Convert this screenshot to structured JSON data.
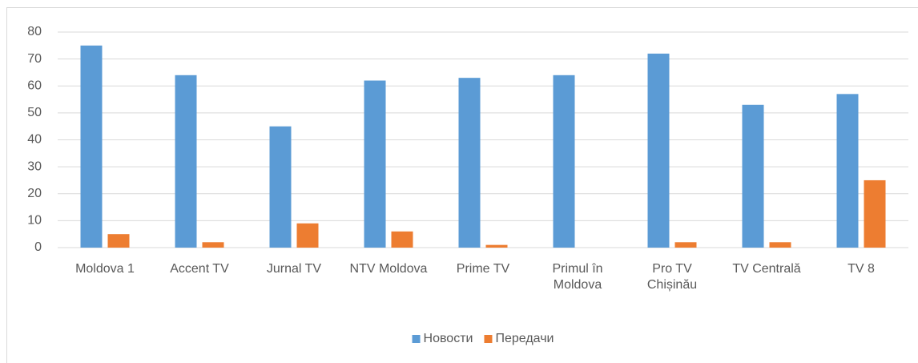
{
  "chart_data": {
    "type": "bar",
    "categories": [
      "Moldova 1",
      "Accent TV",
      "Jurnal TV",
      "NTV Moldova",
      "Prime TV",
      "Primul în Moldova",
      "Pro TV Chișinău",
      "TV Centrală",
      "TV 8"
    ],
    "series": [
      {
        "name": "Новости",
        "color": "#5b9bd5",
        "values": [
          75,
          64,
          45,
          62,
          63,
          64,
          72,
          53,
          57
        ]
      },
      {
        "name": "Передачи",
        "color": "#ed7d31",
        "values": [
          5,
          2,
          9,
          6,
          1,
          0,
          2,
          2,
          25
        ]
      }
    ],
    "ylim": [
      0,
      80
    ],
    "yticks": [
      0,
      10,
      20,
      30,
      40,
      50,
      60,
      70,
      80
    ],
    "grid": true,
    "legend": "bottom"
  }
}
